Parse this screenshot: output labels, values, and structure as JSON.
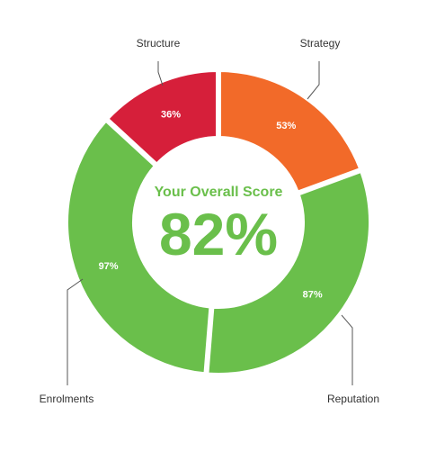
{
  "center": {
    "title": "Your Overall Score",
    "value": "82%",
    "color": "#6abf4b"
  },
  "chart_data": {
    "type": "pie",
    "variant": "donut",
    "title": "",
    "categories": [
      "Strategy",
      "Reputation",
      "Enrolments",
      "Structure"
    ],
    "values": [
      53,
      87,
      97,
      36
    ],
    "value_labels": [
      "53%",
      "87%",
      "97%",
      "36%"
    ],
    "colors": [
      "#f26a29",
      "#6abf4b",
      "#6abf4b",
      "#d61f3a"
    ],
    "legend": "none"
  }
}
